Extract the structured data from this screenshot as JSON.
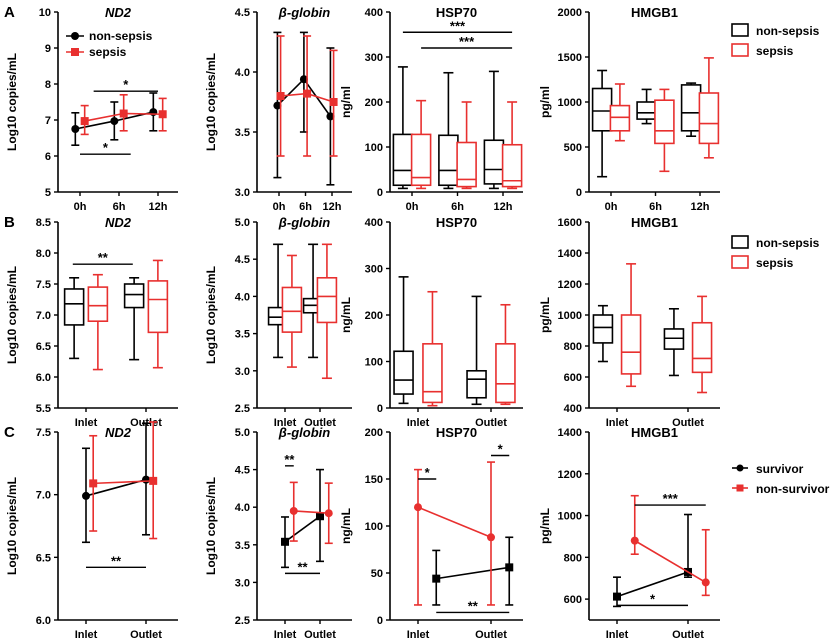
{
  "colors": {
    "black": "#000000",
    "red": "#e8302f"
  },
  "legends": [
    {
      "row": "A",
      "type": "box",
      "items": [
        {
          "label": "non-sepsis",
          "color": "#000000"
        },
        {
          "label": "sepsis",
          "color": "#e8302f"
        }
      ]
    },
    {
      "row": "B",
      "type": "box",
      "items": [
        {
          "label": "non-sepsis",
          "color": "#000000"
        },
        {
          "label": "sepsis",
          "color": "#e8302f"
        }
      ]
    },
    {
      "row": "C",
      "type": "line",
      "items": [
        {
          "label": "survivor",
          "color": "#000000",
          "marker": "circle"
        },
        {
          "label": "non-survivor",
          "color": "#e8302f",
          "marker": "square"
        }
      ]
    }
  ],
  "chart_data": [
    {
      "id": "A1",
      "row": "A",
      "label": "A",
      "type": "line",
      "title": "ND2",
      "italic": true,
      "ylabel": "Log10 copies/mL",
      "ylim": [
        5,
        10
      ],
      "yticks": [
        5,
        6,
        7,
        8,
        9,
        10
      ],
      "yticklabels": [
        "5",
        "6",
        "7",
        "8",
        "9",
        "10"
      ],
      "categories": [
        "0h",
        "6h",
        "12h"
      ],
      "inline_legend": true,
      "series": [
        {
          "name": "non-sepsis",
          "color": "#000000",
          "marker": "circle",
          "offset": -0.12,
          "values": [
            6.75,
            6.97,
            7.22
          ],
          "err_low": [
            6.3,
            6.45,
            6.7
          ],
          "err_high": [
            7.2,
            7.5,
            7.75
          ]
        },
        {
          "name": "sepsis",
          "color": "#e8302f",
          "marker": "square",
          "offset": 0.12,
          "values": [
            6.97,
            7.18,
            7.16
          ],
          "err_low": [
            6.6,
            6.7,
            6.7
          ],
          "err_high": [
            7.4,
            7.7,
            7.6
          ]
        }
      ],
      "annotations": [
        {
          "from": 0.35,
          "to": 2,
          "y": 7.8,
          "text": "*"
        },
        {
          "from": 0,
          "to": 1.3,
          "y": 6.05,
          "text": "*"
        }
      ]
    },
    {
      "id": "A2",
      "row": "A",
      "type": "line",
      "title": "β-globin",
      "italic": true,
      "ylabel": "Log10 copies/mL",
      "ylim": [
        3.0,
        4.5
      ],
      "yticks": [
        3.0,
        3.5,
        4.0,
        4.5
      ],
      "yticklabels": [
        "3.0",
        "3.5",
        "4.0",
        "4.5"
      ],
      "categories": [
        "0h",
        "6h",
        "12h"
      ],
      "series": [
        {
          "name": "non-sepsis",
          "color": "#000000",
          "marker": "circle",
          "offset": -0.06,
          "values": [
            3.72,
            3.94,
            3.63
          ],
          "err_low": [
            3.12,
            3.5,
            3.06
          ],
          "err_high": [
            4.33,
            4.33,
            4.2
          ]
        },
        {
          "name": "sepsis",
          "color": "#e8302f",
          "marker": "square",
          "offset": 0.06,
          "values": [
            3.8,
            3.82,
            3.75
          ],
          "err_low": [
            3.3,
            3.3,
            3.3
          ],
          "err_high": [
            4.3,
            4.3,
            4.18
          ]
        }
      ],
      "annotations": []
    },
    {
      "id": "A3",
      "row": "A",
      "type": "box",
      "title": "HSP70",
      "italic": false,
      "ylabel": "ng/ml",
      "ylim": [
        0,
        400
      ],
      "yticks": [
        0,
        100,
        200,
        300,
        400
      ],
      "yticklabels": [
        "0",
        "100",
        "200",
        "300",
        "400"
      ],
      "categories": [
        "0h",
        "6h",
        "12h"
      ],
      "series": [
        {
          "name": "non-sepsis",
          "color": "#000000",
          "offset": -0.2,
          "boxes": [
            {
              "min": 8,
              "q1": 15,
              "median": 48,
              "q3": 128,
              "max": 278
            },
            {
              "min": 8,
              "q1": 15,
              "median": 48,
              "q3": 126,
              "max": 265
            },
            {
              "min": 8,
              "q1": 18,
              "median": 50,
              "q3": 115,
              "max": 268
            }
          ]
        },
        {
          "name": "sepsis",
          "color": "#e8302f",
          "offset": 0.2,
          "boxes": [
            {
              "min": 8,
              "q1": 15,
              "median": 32,
              "q3": 128,
              "max": 203
            },
            {
              "min": 8,
              "q1": 12,
              "median": 28,
              "q3": 110,
              "max": 200
            },
            {
              "min": 8,
              "q1": 12,
              "median": 25,
              "q3": 105,
              "max": 200
            }
          ]
        }
      ],
      "annotations": [
        {
          "from": -0.2,
          "to": 2.2,
          "y": 355,
          "text": "***"
        },
        {
          "from": 0.2,
          "to": 2.2,
          "y": 320,
          "text": "***"
        }
      ]
    },
    {
      "id": "A4",
      "row": "A",
      "type": "box",
      "title": "HMGB1",
      "italic": false,
      "ylabel": "pg/ml",
      "ylim": [
        0,
        2000
      ],
      "yticks": [
        0,
        500,
        1000,
        1500,
        2000
      ],
      "yticklabels": [
        "0",
        "500",
        "1000",
        "1500",
        "2000"
      ],
      "categories": [
        "0h",
        "6h",
        "12h"
      ],
      "series": [
        {
          "name": "non-sepsis",
          "color": "#000000",
          "offset": -0.2,
          "boxes": [
            {
              "min": 170,
              "q1": 680,
              "median": 900,
              "q3": 1150,
              "max": 1350
            },
            {
              "min": 760,
              "q1": 810,
              "median": 880,
              "q3": 1000,
              "max": 1140
            },
            {
              "min": 620,
              "q1": 680,
              "median": 880,
              "q3": 1190,
              "max": 1210
            }
          ]
        },
        {
          "name": "sepsis",
          "color": "#e8302f",
          "offset": 0.2,
          "boxes": [
            {
              "min": 570,
              "q1": 680,
              "median": 830,
              "q3": 960,
              "max": 1200
            },
            {
              "min": 230,
              "q1": 540,
              "median": 680,
              "q3": 1020,
              "max": 1140
            },
            {
              "min": 380,
              "q1": 540,
              "median": 760,
              "q3": 1100,
              "max": 1490
            }
          ]
        }
      ],
      "annotations": []
    },
    {
      "id": "B1",
      "row": "B",
      "label": "B",
      "type": "box",
      "title": "ND2",
      "italic": true,
      "ylabel": "Log10 copies/mL",
      "ylim": [
        5.5,
        8.5
      ],
      "yticks": [
        5.5,
        6.0,
        6.5,
        7.0,
        7.5,
        8.0,
        8.5
      ],
      "yticklabels": [
        "5.5",
        "6.0",
        "6.5",
        "7.0",
        "7.5",
        "8.0",
        "8.5"
      ],
      "categories": [
        "Inlet",
        "Outlet"
      ],
      "series": [
        {
          "name": "non-sepsis",
          "color": "#000000",
          "offset": -0.22,
          "boxes": [
            {
              "min": 6.3,
              "q1": 6.84,
              "median": 7.18,
              "q3": 7.42,
              "max": 7.6
            },
            {
              "min": 6.28,
              "q1": 7.12,
              "median": 7.33,
              "q3": 7.5,
              "max": 7.6
            }
          ]
        },
        {
          "name": "sepsis",
          "color": "#e8302f",
          "offset": 0.22,
          "boxes": [
            {
              "min": 6.12,
              "q1": 6.9,
              "median": 7.15,
              "q3": 7.45,
              "max": 7.65
            },
            {
              "min": 6.15,
              "q1": 6.72,
              "median": 7.25,
              "q3": 7.55,
              "max": 7.88
            }
          ]
        }
      ],
      "annotations": [
        {
          "from": -0.22,
          "to": 0.78,
          "y": 7.82,
          "text": "**"
        }
      ]
    },
    {
      "id": "B2",
      "row": "B",
      "type": "box",
      "title": "β-globin",
      "italic": true,
      "ylabel": "Log10 copies/mL",
      "ylim": [
        2.5,
        5.0
      ],
      "yticks": [
        2.5,
        3.0,
        3.5,
        4.0,
        4.5,
        5.0
      ],
      "yticklabels": [
        "2.5",
        "3.0",
        "3.5",
        "4.0",
        "4.5",
        "5.0"
      ],
      "categories": [
        "Inlet",
        "Outlet"
      ],
      "series": [
        {
          "name": "non-sepsis",
          "color": "#000000",
          "offset": -0.22,
          "boxes": [
            {
              "min": 3.18,
              "q1": 3.62,
              "median": 3.72,
              "q3": 3.85,
              "max": 4.7
            },
            {
              "min": 3.18,
              "q1": 3.78,
              "median": 3.88,
              "q3": 3.97,
              "max": 4.7
            }
          ]
        },
        {
          "name": "sepsis",
          "color": "#e8302f",
          "offset": 0.22,
          "boxes": [
            {
              "min": 3.05,
              "q1": 3.52,
              "median": 3.8,
              "q3": 4.12,
              "max": 4.55
            },
            {
              "min": 2.9,
              "q1": 3.65,
              "median": 4.0,
              "q3": 4.25,
              "max": 4.7
            }
          ]
        }
      ],
      "annotations": []
    },
    {
      "id": "B3",
      "row": "B",
      "type": "box",
      "title": "HSP70",
      "italic": false,
      "ylabel": "ng/mL",
      "ylim": [
        0,
        400
      ],
      "yticks": [
        0,
        100,
        200,
        300,
        400
      ],
      "yticklabels": [
        "0",
        "100",
        "200",
        "300",
        "400"
      ],
      "categories": [
        "Inlet",
        "Outlet"
      ],
      "series": [
        {
          "name": "non-sepsis",
          "color": "#000000",
          "offset": -0.22,
          "boxes": [
            {
              "min": 10,
              "q1": 30,
              "median": 60,
              "q3": 122,
              "max": 282
            },
            {
              "min": 8,
              "q1": 22,
              "median": 62,
              "q3": 80,
              "max": 240
            }
          ]
        },
        {
          "name": "sepsis",
          "color": "#e8302f",
          "offset": 0.22,
          "boxes": [
            {
              "min": 5,
              "q1": 12,
              "median": 35,
              "q3": 138,
              "max": 250
            },
            {
              "min": 8,
              "q1": 12,
              "median": 52,
              "q3": 138,
              "max": 222
            }
          ]
        }
      ],
      "annotations": []
    },
    {
      "id": "B4",
      "row": "B",
      "type": "box",
      "title": "HMGB1",
      "italic": false,
      "ylabel": "pg/mL",
      "ylim": [
        400,
        1600
      ],
      "yticks": [
        400,
        600,
        800,
        1000,
        1200,
        1400,
        1600
      ],
      "yticklabels": [
        "400",
        "600",
        "800",
        "1000",
        "1200",
        "1400",
        "1600"
      ],
      "categories": [
        "Inlet",
        "Outlet"
      ],
      "series": [
        {
          "name": "non-sepsis",
          "color": "#000000",
          "offset": -0.22,
          "boxes": [
            {
              "min": 700,
              "q1": 820,
              "median": 920,
              "q3": 1000,
              "max": 1060
            },
            {
              "min": 610,
              "q1": 780,
              "median": 850,
              "q3": 910,
              "max": 1040
            }
          ]
        },
        {
          "name": "sepsis",
          "color": "#e8302f",
          "offset": 0.22,
          "boxes": [
            {
              "min": 540,
              "q1": 620,
              "median": 760,
              "q3": 1000,
              "max": 1330
            },
            {
              "min": 500,
              "q1": 630,
              "median": 720,
              "q3": 950,
              "max": 1120
            }
          ]
        }
      ],
      "annotations": []
    },
    {
      "id": "C1",
      "row": "C",
      "label": "C",
      "type": "line",
      "title": "ND2",
      "italic": true,
      "ylabel": "Log10 copies/mL",
      "ylim": [
        6.0,
        7.5
      ],
      "yticks": [
        6.0,
        6.5,
        7.0,
        7.5
      ],
      "yticklabels": [
        "6.0",
        "6.5",
        "7.0",
        "7.5"
      ],
      "categories": [
        "Inlet",
        "Outlet"
      ],
      "series": [
        {
          "name": "survivor",
          "color": "#000000",
          "marker": "circle",
          "offset": 0,
          "values": [
            6.99,
            7.12
          ],
          "err_low": [
            6.62,
            6.68
          ],
          "err_high": [
            7.37,
            7.57
          ]
        },
        {
          "name": "non-survivor",
          "color": "#e8302f",
          "marker": "square",
          "offset": 0.12,
          "values": [
            7.09,
            7.11
          ],
          "err_low": [
            6.71,
            6.65
          ],
          "err_high": [
            7.47,
            7.58
          ]
        }
      ],
      "annotations": [
        {
          "from": 0,
          "to": 1,
          "y": 6.42,
          "text": "**"
        }
      ]
    },
    {
      "id": "C2",
      "row": "C",
      "type": "line",
      "title": "β-globin",
      "italic": true,
      "ylabel": "Log10 copies/mL",
      "ylim": [
        2.5,
        5.0
      ],
      "yticks": [
        2.5,
        3.0,
        3.5,
        4.0,
        4.5,
        5.0
      ],
      "yticklabels": [
        "2.5",
        "3.0",
        "3.5",
        "4.0",
        "4.5",
        "5.0"
      ],
      "categories": [
        "Inlet",
        "Outlet"
      ],
      "series": [
        {
          "name": "survivor",
          "color": "#000000",
          "marker": "square",
          "offset": 0,
          "values": [
            3.54,
            3.88
          ],
          "err_low": [
            3.2,
            3.28
          ],
          "err_high": [
            3.87,
            4.5
          ]
        },
        {
          "name": "non-survivor",
          "color": "#e8302f",
          "marker": "circle",
          "offset": 0.25,
          "values": [
            3.95,
            3.92
          ],
          "err_low": [
            3.55,
            3.52
          ],
          "err_high": [
            4.33,
            4.32
          ]
        }
      ],
      "annotations": [
        {
          "from": 0,
          "to": 0.25,
          "y": 4.55,
          "text": "**"
        },
        {
          "from": 0,
          "to": 1,
          "y": 3.12,
          "text": "**"
        }
      ]
    },
    {
      "id": "C3",
      "row": "C",
      "type": "line",
      "title": "HSP70",
      "italic": false,
      "ylabel": "ng/mL",
      "ylim": [
        0,
        200
      ],
      "yticks": [
        0,
        50,
        100,
        150,
        200
      ],
      "yticklabels": [
        "0",
        "50",
        "100",
        "150",
        "200"
      ],
      "categories": [
        "Inlet",
        "Outlet"
      ],
      "series": [
        {
          "name": "survivor",
          "color": "#000000",
          "marker": "square",
          "offset": 0.25,
          "values": [
            44,
            56
          ],
          "err_low": [
            16,
            16
          ],
          "err_high": [
            74,
            88
          ]
        },
        {
          "name": "non-survivor",
          "color": "#e8302f",
          "marker": "circle",
          "offset": 0,
          "values": [
            120,
            88
          ],
          "err_low": [
            16,
            16
          ],
          "err_high": [
            160,
            168
          ]
        }
      ],
      "annotations": [
        {
          "from": 0,
          "to": 0.25,
          "y": 150,
          "text": "*"
        },
        {
          "from": 1,
          "to": 1.25,
          "y": 175,
          "text": "*"
        },
        {
          "from": 0.25,
          "to": 1.25,
          "y": 8,
          "text": "**"
        }
      ]
    },
    {
      "id": "C4",
      "row": "C",
      "type": "line",
      "title": "HMGB1",
      "italic": false,
      "ylabel": "pg/mL",
      "ylim": [
        500,
        1400
      ],
      "yticks": [
        600,
        800,
        1000,
        1200,
        1400
      ],
      "yticklabels": [
        "600",
        "800",
        "1000",
        "1200",
        "1400"
      ],
      "categories": [
        "Inlet",
        "Outlet"
      ],
      "series": [
        {
          "name": "survivor",
          "color": "#000000",
          "marker": "square",
          "offset": 0,
          "values": [
            612,
            730
          ],
          "err_low": [
            565,
            705
          ],
          "err_high": [
            705,
            1005
          ]
        },
        {
          "name": "non-survivor",
          "color": "#e8302f",
          "marker": "circle",
          "offset": 0.25,
          "values": [
            880,
            680
          ],
          "err_low": [
            815,
            618
          ],
          "err_high": [
            1095,
            932
          ]
        }
      ],
      "annotations": [
        {
          "from": 0.25,
          "to": 1.25,
          "y": 1050,
          "text": "***"
        },
        {
          "from": 0,
          "to": 1,
          "y": 570,
          "text": "*"
        }
      ]
    }
  ]
}
